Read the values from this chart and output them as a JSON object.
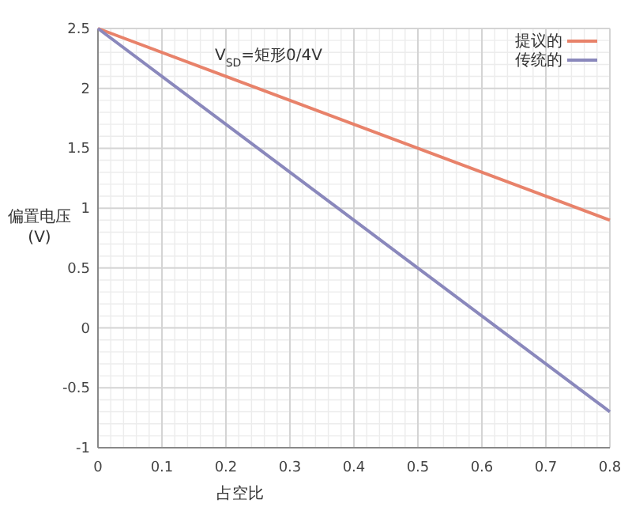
{
  "chart_data": {
    "type": "line",
    "xlabel": "占空比",
    "ylabel": "偏置电压\n(V)",
    "annotations": [
      "V$_{SD}$=矩形0/4V"
    ],
    "x": [
      0,
      0.8
    ],
    "series": [
      {
        "name": "提议的",
        "color": "#e8826a",
        "values": [
          2.5,
          0.9
        ]
      },
      {
        "name": "传统的",
        "color": "#8a88bc",
        "values": [
          2.5,
          -0.7
        ]
      }
    ],
    "xlim": [
      0,
      0.8
    ],
    "xticks": [
      0,
      0.1,
      0.2,
      0.3,
      0.4,
      0.5,
      0.6,
      0.7,
      0.8
    ],
    "ylim": [
      -1,
      2.5
    ],
    "yticks": [
      -1,
      -0.5,
      0,
      0.5,
      1,
      1.5,
      2,
      2.5
    ],
    "grid": true,
    "legend": "top right",
    "marker": "none",
    "line_style": "solid"
  }
}
